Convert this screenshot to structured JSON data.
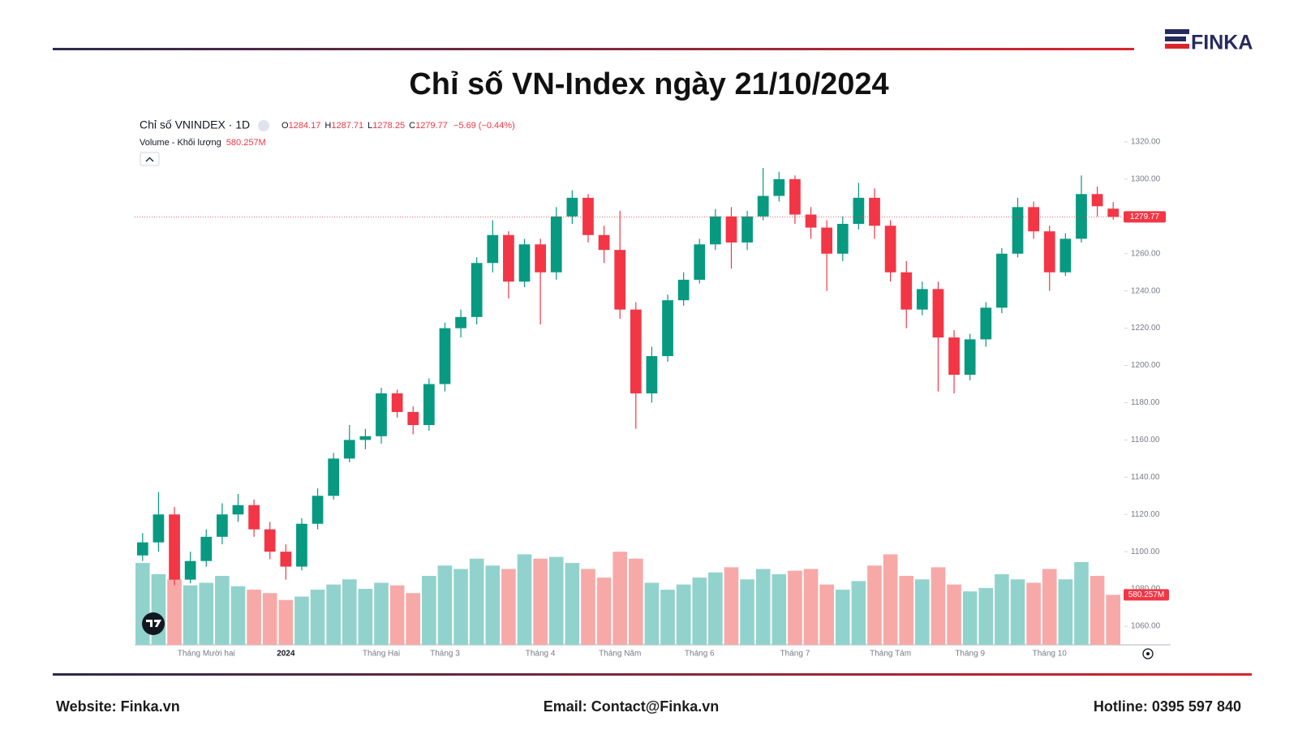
{
  "title": "Chỉ số VN-Index ngày 21/10/2024",
  "logo_text": "FINKA",
  "footer": {
    "website": "Website: Finka.vn",
    "email": "Email: Contact@Finka.vn",
    "hotline": "Hotline: 0395 597 840"
  },
  "chart_data": {
    "type": "candlestick",
    "symbol_label": "Chỉ số VNINDEX · 1D",
    "ohlc_labels": [
      "O",
      "H",
      "L",
      "C"
    ],
    "change_label": "−5.69 (−0.44%)",
    "volume_title": "Volume - Khối lượng",
    "last_volume_label": "580.257M",
    "categories": [
      null,
      null,
      null,
      null,
      "Tháng Mười hai",
      null,
      null,
      null,
      null,
      "2024",
      null,
      null,
      null,
      null,
      null,
      "Tháng Hai",
      null,
      null,
      null,
      "Tháng 3",
      null,
      null,
      null,
      null,
      null,
      "Tháng 4",
      null,
      null,
      null,
      null,
      "Tháng Năm",
      null,
      null,
      null,
      null,
      "Tháng 6",
      null,
      null,
      null,
      null,
      null,
      "Tháng 7",
      null,
      null,
      null,
      null,
      null,
      "Tháng Tám",
      null,
      null,
      null,
      null,
      "Tháng 9",
      null,
      null,
      null,
      null,
      "Tháng 10",
      null,
      null,
      null,
      null
    ],
    "open": [
      1098,
      1105,
      1120,
      1085,
      1095,
      1108,
      1120,
      1125,
      1112,
      1100,
      1092,
      1115,
      1130,
      1150,
      1160,
      1162,
      1185,
      1175,
      1168,
      1190,
      1220,
      1226,
      1255,
      1270,
      1245,
      1265,
      1250,
      1280,
      1290,
      1270,
      1262,
      1230,
      1185,
      1205,
      1235,
      1246,
      1265,
      1280,
      1266,
      1280,
      1291,
      1300,
      1281,
      1274,
      1260,
      1276,
      1290,
      1275,
      1250,
      1230,
      1241,
      1215,
      1195,
      1214,
      1231,
      1260,
      1285,
      1272,
      1250,
      1268,
      1292,
      1284.17
    ],
    "high": [
      1110,
      1132,
      1124,
      1100,
      1112,
      1126,
      1131,
      1128,
      1116,
      1104,
      1118,
      1134,
      1153,
      1168,
      1166,
      1188,
      1187,
      1178,
      1193,
      1223,
      1230,
      1258,
      1278,
      1272,
      1268,
      1268,
      1285,
      1294,
      1292,
      1275,
      1283,
      1234,
      1210,
      1238,
      1250,
      1268,
      1284,
      1285,
      1283,
      1306,
      1304,
      1302,
      1285,
      1278,
      1280,
      1298,
      1295,
      1278,
      1256,
      1245,
      1245,
      1219,
      1217,
      1234,
      1263,
      1290,
      1288,
      1275,
      1271,
      1302,
      1296,
      1287.71
    ],
    "low": [
      1095,
      1100,
      1082,
      1083,
      1092,
      1104,
      1116,
      1108,
      1096,
      1085,
      1090,
      1112,
      1128,
      1148,
      1155,
      1158,
      1172,
      1163,
      1165,
      1186,
      1215,
      1222,
      1250,
      1236,
      1242,
      1222,
      1246,
      1276,
      1266,
      1255,
      1225,
      1166,
      1180,
      1202,
      1232,
      1244,
      1262,
      1252,
      1262,
      1278,
      1288,
      1276,
      1268,
      1240,
      1256,
      1273,
      1268,
      1245,
      1220,
      1227,
      1186,
      1185,
      1192,
      1210,
      1228,
      1258,
      1268,
      1240,
      1248,
      1266,
      1280,
      1278.25
    ],
    "close": [
      1105,
      1120,
      1085,
      1095,
      1108,
      1120,
      1125,
      1112,
      1100,
      1092,
      1115,
      1130,
      1150,
      1160,
      1162,
      1185,
      1175,
      1168,
      1190,
      1220,
      1226,
      1255,
      1270,
      1245,
      1265,
      1250,
      1280,
      1290,
      1270,
      1262,
      1230,
      1185,
      1205,
      1235,
      1246,
      1265,
      1280,
      1266,
      1280,
      1291,
      1300,
      1281,
      1274,
      1260,
      1276,
      1290,
      1275,
      1250,
      1230,
      1241,
      1215,
      1195,
      1214,
      1231,
      1260,
      1285,
      1272,
      1250,
      1268,
      1292,
      1285.46,
      1279.77
    ],
    "volume": [
      950,
      820,
      760,
      690,
      720,
      800,
      680,
      640,
      600,
      520,
      560,
      640,
      700,
      760,
      650,
      720,
      690,
      600,
      800,
      920,
      880,
      1000,
      920,
      880,
      1050,
      1000,
      1020,
      950,
      880,
      780,
      1080,
      1000,
      720,
      640,
      700,
      780,
      840,
      900,
      760,
      880,
      820,
      860,
      880,
      700,
      640,
      740,
      920,
      1050,
      800,
      760,
      900,
      700,
      620,
      660,
      820,
      760,
      720,
      880,
      760,
      960,
      800,
      580.257
    ],
    "ylim": [
      1050,
      1330
    ],
    "yticks": [
      {
        "value": 1060,
        "label": "1060.00"
      },
      {
        "value": 1080,
        "label": "1080.00"
      },
      {
        "value": 1100,
        "label": "1100.00"
      },
      {
        "value": 1120,
        "label": "1120.00"
      },
      {
        "value": 1140,
        "label": "1140.00"
      },
      {
        "value": 1160,
        "label": "1160.00"
      },
      {
        "value": 1180,
        "label": "1180.00"
      },
      {
        "value": 1200,
        "label": "1200.00"
      },
      {
        "value": 1220,
        "label": "1220.00"
      },
      {
        "value": 1240,
        "label": "1240.00"
      },
      {
        "value": 1260,
        "label": "1260.00"
      },
      {
        "value": 1280,
        "label": "1280.00"
      },
      {
        "value": 1300,
        "label": "1300.00"
      },
      {
        "value": 1320,
        "label": "1320.00"
      }
    ],
    "volume_lim": [
      0,
      1600
    ],
    "up_color": "#089981",
    "down_color": "#f23645",
    "up_volume_color": "#92d2cc",
    "down_volume_color": "#f7a9a7"
  }
}
